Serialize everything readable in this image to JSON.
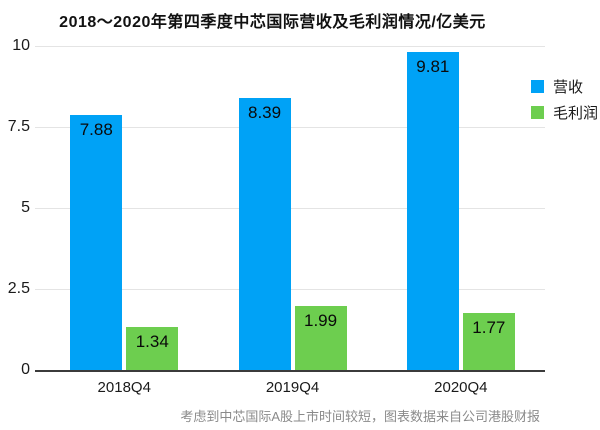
{
  "title": "2018～2020年第四季度中芯国际营收及毛利润情况/亿美元",
  "footnote": "考虑到中芯国际A股上市时间较短，图表数据来自公司港股财报",
  "colors": {
    "revenue": "#00A2F6",
    "gross_profit": "#6DCE4F",
    "gridline": "#e4e4e4",
    "axis_line": "#3b3b3b",
    "footnote_text": "#8a8a8a"
  },
  "chart_data": {
    "type": "bar",
    "title": "2018～2020年第四季度中芯国际营收及毛利润情况/亿美元",
    "categories": [
      "2018Q4",
      "2019Q4",
      "2020Q4"
    ],
    "series": [
      {
        "name": "营收",
        "color": "#00A2F6",
        "values": [
          7.88,
          8.39,
          9.81
        ]
      },
      {
        "name": "毛利润",
        "color": "#6DCE4F",
        "values": [
          1.34,
          1.99,
          1.77
        ]
      }
    ],
    "xlabel": "",
    "ylabel": "",
    "ylim": [
      0,
      10
    ],
    "yticks": [
      0,
      2.5,
      5,
      7.5,
      10
    ],
    "grid": true,
    "legend_position": "right",
    "value_labels": "inside-top",
    "footnote": "考虑到中芯国际A股上市时间较短，图表数据来自公司港股财报"
  }
}
